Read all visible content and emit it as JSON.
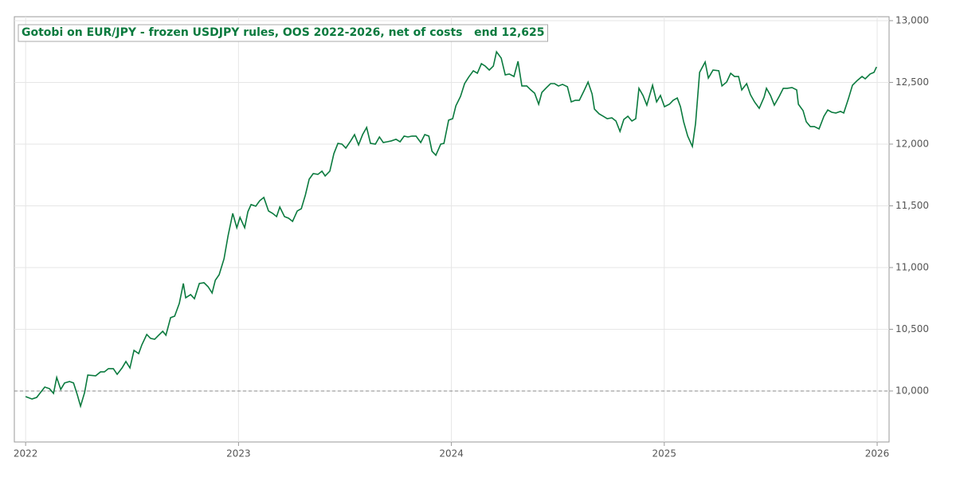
{
  "chart_data": {
    "type": "line",
    "title": "Gotobi on EUR/JPY - frozen USDJPY rules, OOS 2022-2026, net of costs   end 12,625",
    "color": "#0a7a3e",
    "grid": true,
    "hline": 10000,
    "y_axis_side": "right",
    "xlim": [
      2021.947,
      2026.056
    ],
    "ylim": [
      9587,
      13032
    ],
    "xticks": [
      2022,
      2023,
      2024,
      2025,
      2026
    ],
    "yticks": [
      {
        "value": 10000,
        "label": "10,000"
      },
      {
        "value": 10500,
        "label": "10,500"
      },
      {
        "value": 11000,
        "label": "11,000"
      },
      {
        "value": 11500,
        "label": "11,500"
      },
      {
        "value": 12000,
        "label": "12,000"
      },
      {
        "value": 12500,
        "label": "12,500"
      },
      {
        "value": 13000,
        "label": "13,000"
      }
    ],
    "x": [
      2022.0,
      2022.03,
      2022.052,
      2022.067,
      2022.09,
      2022.112,
      2022.131,
      2022.146,
      2022.165,
      2022.183,
      2022.206,
      2022.225,
      2022.243,
      2022.258,
      2022.277,
      2022.292,
      2022.329,
      2022.352,
      2022.37,
      2022.389,
      2022.412,
      2022.43,
      2022.453,
      2022.471,
      2022.49,
      2022.509,
      2022.531,
      2022.546,
      2022.569,
      2022.587,
      2022.606,
      2022.625,
      2022.644,
      2022.659,
      2022.681,
      2022.7,
      2022.722,
      2022.741,
      2022.752,
      2022.775,
      2022.793,
      2022.816,
      2022.838,
      2022.857,
      2022.876,
      2022.891,
      2022.909,
      2022.932,
      2022.951,
      2022.973,
      2022.992,
      2023.007,
      2023.029,
      2023.044,
      2023.059,
      2023.081,
      2023.1,
      2023.119,
      2023.141,
      2023.16,
      2023.179,
      2023.194,
      2023.216,
      2023.235,
      2023.254,
      2023.276,
      2023.295,
      2023.314,
      2023.332,
      2023.351,
      2023.373,
      2023.392,
      2023.407,
      2023.429,
      2023.448,
      2023.467,
      2023.486,
      2023.504,
      2023.527,
      2023.545,
      2023.564,
      2023.583,
      2023.602,
      2023.62,
      2023.643,
      2023.662,
      2023.68,
      2023.699,
      2023.718,
      2023.74,
      2023.759,
      2023.778,
      2023.796,
      2023.815,
      2023.834,
      2023.856,
      2023.875,
      2023.894,
      2023.909,
      2023.927,
      2023.95,
      2023.965,
      2023.987,
      2024.006,
      2024.021,
      2024.043,
      2024.062,
      2024.081,
      2024.103,
      2024.122,
      2024.141,
      2024.159,
      2024.178,
      2024.197,
      2024.212,
      2024.234,
      2024.253,
      2024.272,
      2024.294,
      2024.313,
      2024.331,
      2024.354,
      2024.373,
      2024.391,
      2024.41,
      2024.425,
      2024.447,
      2024.466,
      2024.485,
      2024.503,
      2024.522,
      2024.545,
      2024.563,
      2024.582,
      2024.601,
      2024.623,
      2024.642,
      2024.661,
      2024.672,
      2024.694,
      2024.713,
      2024.732,
      2024.754,
      2024.773,
      2024.792,
      2024.81,
      2024.829,
      2024.848,
      2024.866,
      2024.881,
      2024.9,
      2024.918,
      2024.945,
      2024.964,
      2024.982,
      2025.001,
      2025.024,
      2025.042,
      2025.061,
      2025.076,
      2025.091,
      2025.11,
      2025.132,
      2025.147,
      2025.166,
      2025.192,
      2025.207,
      2025.229,
      2025.256,
      2025.271,
      2025.293,
      2025.312,
      2025.33,
      2025.349,
      2025.364,
      2025.387,
      2025.405,
      2025.424,
      2025.446,
      2025.469,
      2025.48,
      2025.499,
      2025.517,
      2025.54,
      2025.559,
      2025.577,
      2025.6,
      2025.622,
      2025.63,
      2025.652,
      2025.667,
      2025.686,
      2025.705,
      2025.727,
      2025.75,
      2025.768,
      2025.787,
      2025.806,
      2025.828,
      2025.843,
      2025.865,
      2025.884,
      2025.907,
      2025.929,
      2025.944,
      2025.967,
      2025.985,
      2025.997
    ],
    "values": [
      9955,
      9935,
      9948,
      9981,
      10032,
      10019,
      9981,
      10110,
      10013,
      10065,
      10077,
      10065,
      9968,
      9877,
      9987,
      10129,
      10123,
      10155,
      10155,
      10181,
      10181,
      10135,
      10187,
      10239,
      10187,
      10329,
      10303,
      10374,
      10458,
      10426,
      10419,
      10452,
      10484,
      10452,
      10594,
      10606,
      10710,
      10871,
      10755,
      10781,
      10748,
      10871,
      10877,
      10845,
      10794,
      10897,
      10942,
      11071,
      11258,
      11439,
      11323,
      11406,
      11323,
      11452,
      11510,
      11497,
      11542,
      11568,
      11458,
      11439,
      11413,
      11490,
      11413,
      11400,
      11374,
      11458,
      11477,
      11587,
      11716,
      11761,
      11755,
      11781,
      11742,
      11781,
      11923,
      12006,
      12000,
      11968,
      12026,
      12077,
      11994,
      12077,
      12135,
      12006,
      12000,
      12058,
      12013,
      12019,
      12026,
      12039,
      12019,
      12065,
      12058,
      12065,
      12065,
      12013,
      12077,
      12065,
      11942,
      11910,
      12000,
      12006,
      12194,
      12206,
      12310,
      12387,
      12490,
      12542,
      12594,
      12574,
      12652,
      12632,
      12600,
      12632,
      12748,
      12697,
      12561,
      12568,
      12548,
      12671,
      12471,
      12471,
      12439,
      12413,
      12323,
      12419,
      12458,
      12490,
      12490,
      12471,
      12484,
      12465,
      12342,
      12355,
      12355,
      12432,
      12503,
      12406,
      12284,
      12245,
      12226,
      12206,
      12213,
      12187,
      12103,
      12200,
      12226,
      12187,
      12206,
      12452,
      12394,
      12316,
      12477,
      12342,
      12394,
      12303,
      12323,
      12355,
      12374,
      12303,
      12181,
      12065,
      11981,
      12168,
      12581,
      12665,
      12535,
      12600,
      12594,
      12471,
      12503,
      12574,
      12548,
      12548,
      12439,
      12490,
      12400,
      12342,
      12290,
      12381,
      12452,
      12394,
      12316,
      12387,
      12452,
      12452,
      12458,
      12439,
      12323,
      12271,
      12181,
      12142,
      12142,
      12123,
      12226,
      12277,
      12258,
      12252,
      12265,
      12252,
      12368,
      12477,
      12516,
      12548,
      12529,
      12568,
      12581,
      12625
    ]
  }
}
